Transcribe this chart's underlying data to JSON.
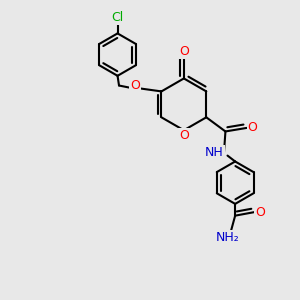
{
  "background_color": "#e8e8e8",
  "bond_color": "#000000",
  "bond_width": 1.5,
  "atom_colors": {
    "O": "#ff0000",
    "N": "#0000cc",
    "Cl": "#00aa00"
  },
  "font_size": 9,
  "xlim": [
    0,
    10
  ],
  "ylim": [
    0,
    10
  ]
}
